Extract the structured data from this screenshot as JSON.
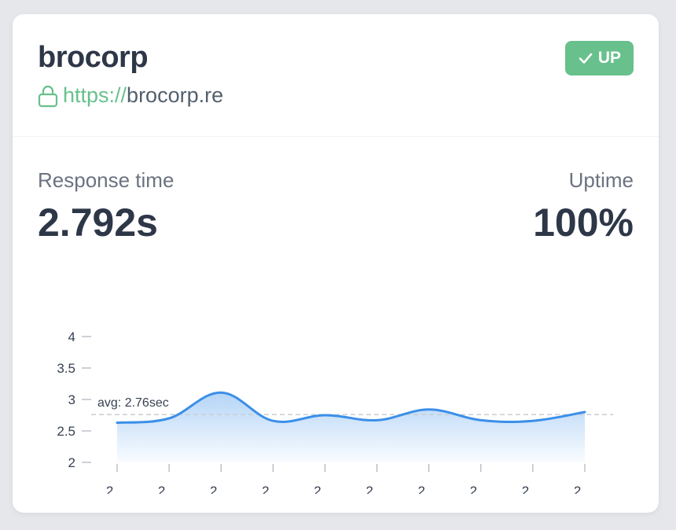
{
  "monitor": {
    "name": "brocorp",
    "url_protocol": "https://",
    "url_host": "brocorp.re",
    "status": "UP"
  },
  "metrics": {
    "response_label": "Response time",
    "response_value": "2.792s",
    "uptime_label": "Uptime",
    "uptime_value": "100%"
  },
  "colors": {
    "accent_green": "#68c08c",
    "line_blue": "#3b8fe8"
  },
  "icons": {
    "lock": "lock-icon",
    "check": "check-icon"
  },
  "chart_data": {
    "type": "area",
    "x": [
      "2 ...",
      "2 ...",
      "2 ...",
      "2 ...",
      "2 ...",
      "2 ...",
      "2 ...",
      "2 ...",
      "2 ...",
      "2 ..."
    ],
    "series": [
      {
        "values": [
          2.63,
          2.7,
          3.11,
          2.66,
          2.75,
          2.67,
          2.84,
          2.67,
          2.66,
          2.8
        ]
      }
    ],
    "ylim": [
      2,
      4
    ],
    "yticks": [
      4,
      3.5,
      3,
      2.5,
      2
    ],
    "average": 2.76,
    "average_label": "avg: 2.76sec",
    "grid": false
  }
}
